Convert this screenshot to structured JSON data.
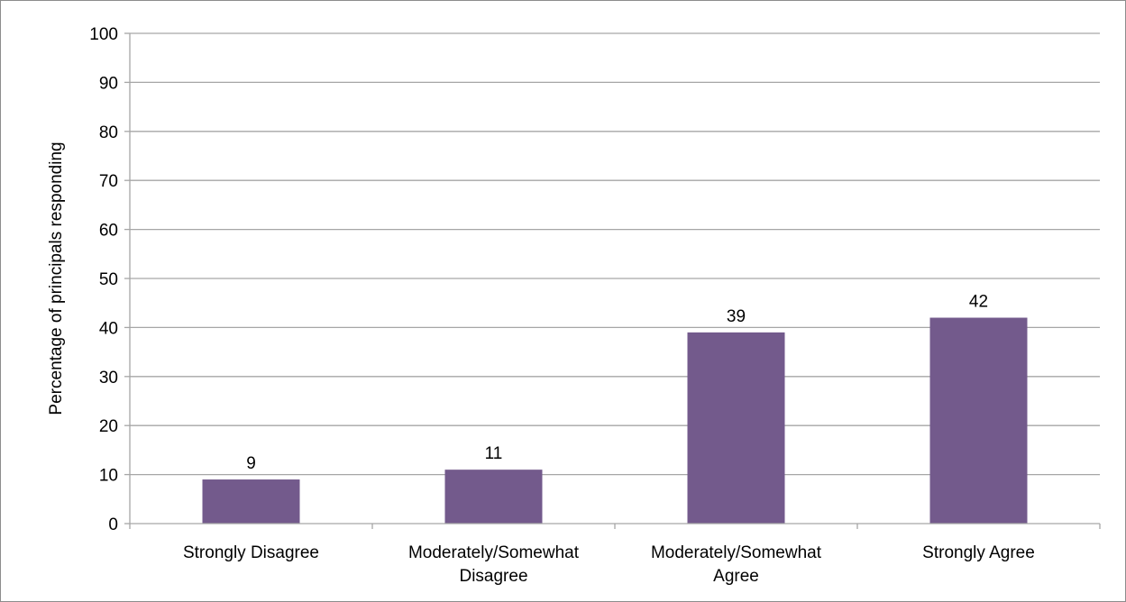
{
  "chart_data": {
    "type": "bar",
    "categories": [
      [
        "Strongly Disagree"
      ],
      [
        "Moderately/Somewhat",
        "Disagree"
      ],
      [
        "Moderately/Somewhat",
        "Agree"
      ],
      [
        "Strongly Agree"
      ]
    ],
    "values": [
      9,
      11,
      39,
      42
    ],
    "data_labels": [
      "9",
      "11",
      "39",
      "42"
    ],
    "ylabel": "Percentage of principals responding",
    "xlabel": "",
    "ylim": [
      0,
      100
    ],
    "yticks": [
      0,
      10,
      20,
      30,
      40,
      50,
      60,
      70,
      80,
      90,
      100
    ],
    "grid": true,
    "legend": "none",
    "bar_color": "#735a8c",
    "gridline_color": "#a6a6a6"
  }
}
